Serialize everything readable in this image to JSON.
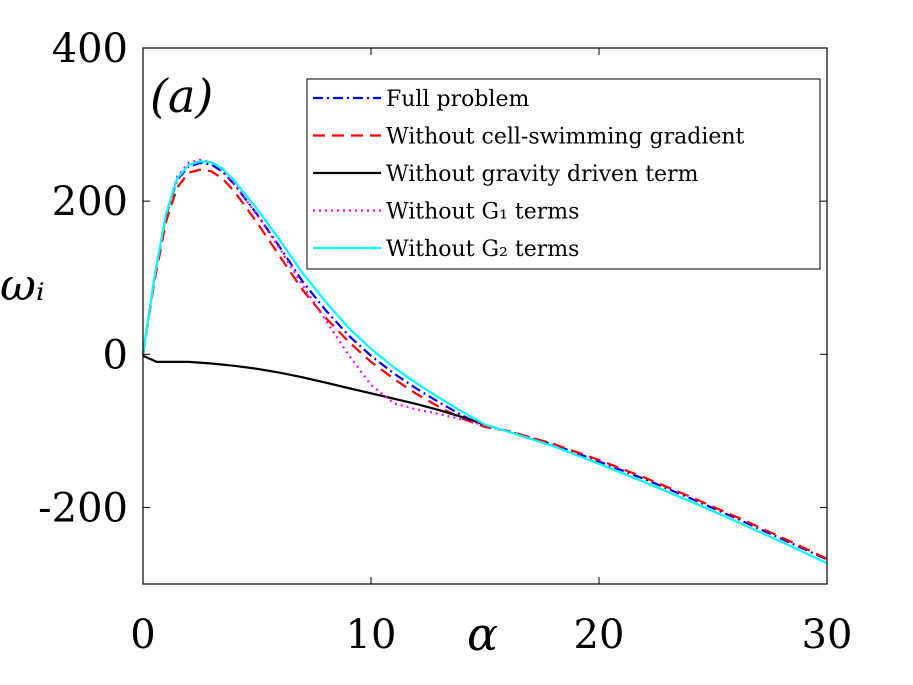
{
  "chart_data": {
    "type": "line",
    "panel_label": "(a)",
    "xlabel": "α",
    "ylabel": "ωᵢ",
    "xlim": [
      0,
      30
    ],
    "ylim": [
      -300,
      400
    ],
    "xticks": [
      0,
      10,
      20,
      30
    ],
    "xtick_labels": [
      "0",
      "10",
      "20",
      "30"
    ],
    "yticks": [
      400,
      200,
      0,
      -200
    ],
    "ytick_labels": [
      "400",
      "200",
      "0",
      "-200"
    ],
    "grid": false,
    "legend_position": "top-right",
    "series": [
      {
        "name": "Full problem",
        "color": "#0000ff",
        "dash": "dashdot",
        "x": [
          0,
          0.5,
          1,
          1.5,
          2,
          2.5,
          3,
          3.5,
          4,
          5,
          6,
          7,
          8,
          9,
          10,
          11,
          12,
          13,
          14,
          15,
          16,
          18,
          20,
          22,
          24,
          26,
          28,
          30
        ],
        "y": [
          0,
          100,
          180,
          228,
          245,
          250,
          248,
          238,
          222,
          183,
          140,
          95,
          58,
          25,
          -2,
          -25,
          -45,
          -63,
          -80,
          -94,
          -100,
          -118,
          -140,
          -163,
          -188,
          -214,
          -241,
          -268
        ]
      },
      {
        "name": "Without cell-swimming gradient",
        "color": "#ff0000",
        "dash": "dashed",
        "x": [
          0,
          0.5,
          1,
          1.5,
          2,
          2.5,
          3,
          3.5,
          4,
          5,
          6,
          7,
          8,
          9,
          10,
          11,
          12,
          13,
          14,
          15,
          16,
          18,
          20,
          22,
          24,
          26,
          28,
          30
        ],
        "y": [
          0,
          95,
          172,
          218,
          237,
          241,
          239,
          229,
          213,
          172,
          128,
          84,
          48,
          17,
          -10,
          -32,
          -52,
          -69,
          -84,
          -95,
          -100,
          -117,
          -138,
          -161,
          -186,
          -212,
          -239,
          -267
        ]
      },
      {
        "name": "Without gravity driven term",
        "color": "#000000",
        "dash": "solid",
        "x": [
          0,
          0.6,
          1,
          2,
          3,
          4,
          5,
          6,
          7,
          8,
          9,
          10,
          11,
          12,
          13,
          14,
          15
        ],
        "y": [
          -2,
          -10,
          -10,
          -10,
          -12,
          -15,
          -19,
          -24,
          -30,
          -37,
          -44,
          -51,
          -58,
          -65,
          -73,
          -82,
          -92
        ]
      },
      {
        "name": "Without G₁ terms",
        "color": "#ff00ff",
        "dash": "dotted",
        "x": [
          0,
          0.5,
          1,
          1.5,
          2,
          2.5,
          3,
          3.5,
          4,
          5,
          6,
          7,
          8,
          9,
          10,
          11,
          12,
          13,
          14,
          15
        ],
        "y": [
          0,
          100,
          182,
          232,
          250,
          254,
          251,
          240,
          223,
          182,
          138,
          90,
          45,
          0,
          -40,
          -64,
          -72,
          -78,
          -85,
          -93
        ]
      },
      {
        "name": "Without G₂ terms",
        "color": "#00ffff",
        "dash": "solid",
        "x": [
          0,
          0.5,
          1,
          1.5,
          2,
          2.5,
          3,
          3.5,
          4,
          5,
          6,
          7,
          8,
          9,
          10,
          11,
          12,
          13,
          14,
          15,
          16,
          18,
          20,
          22,
          24,
          26,
          28,
          30
        ],
        "y": [
          0,
          100,
          182,
          230,
          247,
          252,
          251,
          242,
          227,
          190,
          149,
          106,
          69,
          35,
          7,
          -17,
          -38,
          -57,
          -75,
          -92,
          -101,
          -120,
          -143,
          -167,
          -192,
          -218,
          -245,
          -273
        ]
      }
    ]
  }
}
